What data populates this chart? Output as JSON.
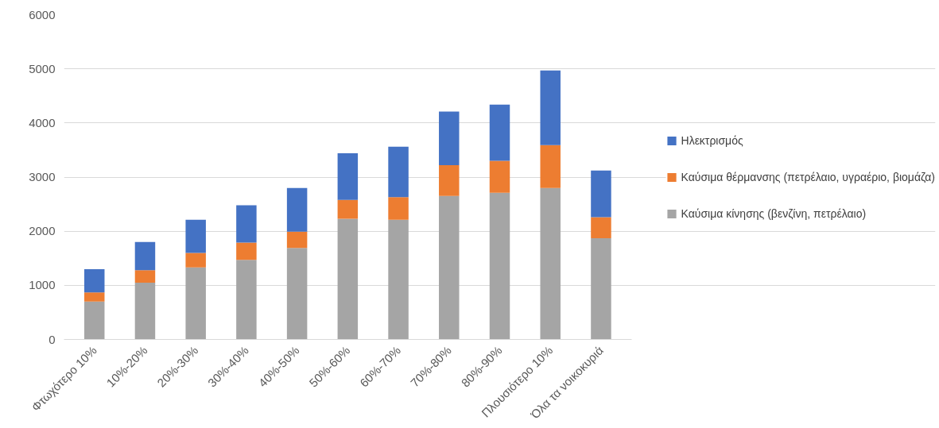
{
  "chart_data": {
    "type": "bar",
    "stacked": true,
    "categories": [
      "Φτωχότερο 10%",
      "10%-20%",
      "20%-30%",
      "30%-40%",
      "40%-50%",
      "50%-60%",
      "60%-70%",
      "70%-80%",
      "80%-90%",
      "Πλουσιότερο 10%",
      "Όλα τα νοικοκυριά"
    ],
    "series": [
      {
        "name": "Καύσιμα κίνησης (βενζίνη, πετρέλαιο)",
        "color": "#a5a5a5",
        "values": [
          700,
          1050,
          1330,
          1470,
          1690,
          2230,
          2210,
          2650,
          2710,
          2800,
          1870
        ]
      },
      {
        "name": "Καύσιμα θέρμανσης (πετρέλαιο, υγραέριο, βιομάζα)",
        "color": "#ed7d31",
        "values": [
          170,
          230,
          270,
          320,
          300,
          350,
          420,
          570,
          590,
          790,
          390
        ]
      },
      {
        "name": "Ηλεκτρισμός",
        "color": "#4472c4",
        "values": [
          430,
          520,
          610,
          690,
          810,
          860,
          930,
          990,
          1040,
          1380,
          860
        ]
      }
    ],
    "ylim": [
      0,
      6000
    ],
    "yticks": [
      0,
      1000,
      2000,
      3000,
      4000,
      5000,
      6000
    ],
    "grid": "y",
    "legend": "right"
  }
}
